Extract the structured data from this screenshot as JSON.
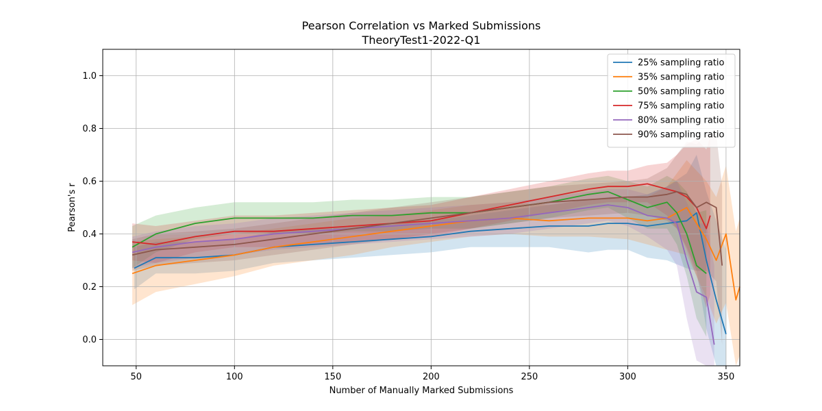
{
  "chart_data": {
    "type": "line",
    "title": "Pearson Correlation vs Marked Submissions",
    "subtitle": "TheoryTest1-2022-Q1",
    "xlabel": "Number of Manually Marked Submissions",
    "ylabel": "Pearson's r",
    "xlim": [
      33,
      357
    ],
    "ylim": [
      -0.1,
      1.1
    ],
    "xticks": [
      50,
      100,
      150,
      200,
      250,
      300,
      350
    ],
    "yticks": [
      0.0,
      0.2,
      0.4,
      0.6,
      0.8,
      1.0
    ],
    "xtick_labels": [
      "50",
      "100",
      "150",
      "200",
      "250",
      "300",
      "350"
    ],
    "ytick_labels": [
      "0.0",
      "0.2",
      "0.4",
      "0.6",
      "0.8",
      "1.0"
    ],
    "grid": true,
    "legend_position": "top-right",
    "series": [
      {
        "name": "25% sampling ratio",
        "color": "#1f77b4",
        "x": [
          49,
          60,
          80,
          100,
          120,
          140,
          160,
          180,
          200,
          220,
          240,
          260,
          280,
          290,
          300,
          310,
          320,
          330,
          335,
          340,
          345,
          350
        ],
        "y": [
          0.27,
          0.31,
          0.31,
          0.32,
          0.35,
          0.36,
          0.37,
          0.38,
          0.39,
          0.41,
          0.42,
          0.43,
          0.43,
          0.44,
          0.44,
          0.43,
          0.44,
          0.45,
          0.48,
          0.3,
          0.15,
          0.02
        ],
        "band": [
          0.08,
          0.06,
          0.06,
          0.06,
          0.06,
          0.06,
          0.06,
          0.06,
          0.06,
          0.06,
          0.07,
          0.08,
          0.1,
          0.1,
          0.1,
          0.12,
          0.14,
          0.18,
          0.22,
          0.26,
          0.3,
          0.32
        ]
      },
      {
        "name": "35% sampling ratio",
        "color": "#ff7f0e",
        "x": [
          48,
          60,
          80,
          100,
          120,
          140,
          160,
          180,
          200,
          220,
          240,
          260,
          280,
          300,
          310,
          320,
          330,
          340,
          345,
          350,
          355,
          357
        ],
        "y": [
          0.25,
          0.28,
          0.3,
          0.32,
          0.35,
          0.37,
          0.39,
          0.41,
          0.43,
          0.45,
          0.46,
          0.45,
          0.46,
          0.46,
          0.45,
          0.46,
          0.5,
          0.38,
          0.3,
          0.4,
          0.15,
          0.2
        ],
        "band": [
          0.12,
          0.1,
          0.09,
          0.08,
          0.07,
          0.07,
          0.07,
          0.06,
          0.06,
          0.06,
          0.06,
          0.06,
          0.07,
          0.08,
          0.09,
          0.12,
          0.18,
          0.22,
          0.24,
          0.26,
          0.26,
          0.26
        ]
      },
      {
        "name": "50% sampling ratio",
        "color": "#2ca02c",
        "x": [
          48,
          60,
          80,
          100,
          120,
          140,
          160,
          180,
          200,
          220,
          240,
          260,
          280,
          290,
          300,
          310,
          320,
          325,
          330,
          335,
          340
        ],
        "y": [
          0.35,
          0.4,
          0.44,
          0.46,
          0.46,
          0.46,
          0.47,
          0.47,
          0.48,
          0.48,
          0.5,
          0.52,
          0.55,
          0.56,
          0.53,
          0.5,
          0.52,
          0.48,
          0.4,
          0.28,
          0.25
        ],
        "band": [
          0.08,
          0.07,
          0.06,
          0.06,
          0.06,
          0.06,
          0.06,
          0.06,
          0.06,
          0.06,
          0.06,
          0.06,
          0.06,
          0.06,
          0.07,
          0.08,
          0.1,
          0.12,
          0.16,
          0.2,
          0.24
        ]
      },
      {
        "name": "75% sampling ratio",
        "color": "#d62728",
        "x": [
          48,
          60,
          80,
          100,
          120,
          140,
          160,
          180,
          200,
          220,
          240,
          260,
          280,
          290,
          300,
          310,
          320,
          325,
          330,
          335,
          340,
          342
        ],
        "y": [
          0.37,
          0.36,
          0.39,
          0.41,
          0.41,
          0.42,
          0.43,
          0.44,
          0.45,
          0.48,
          0.51,
          0.54,
          0.57,
          0.58,
          0.58,
          0.59,
          0.57,
          0.56,
          0.54,
          0.5,
          0.42,
          0.47
        ],
        "band": [
          0.07,
          0.07,
          0.06,
          0.06,
          0.06,
          0.06,
          0.06,
          0.06,
          0.06,
          0.06,
          0.06,
          0.06,
          0.06,
          0.06,
          0.06,
          0.07,
          0.1,
          0.14,
          0.2,
          0.26,
          0.3,
          0.3
        ]
      },
      {
        "name": "80% sampling ratio",
        "color": "#9467bd",
        "x": [
          48,
          60,
          80,
          100,
          120,
          140,
          160,
          180,
          200,
          220,
          240,
          260,
          280,
          290,
          300,
          310,
          320,
          325,
          330,
          335,
          340,
          344
        ],
        "y": [
          0.33,
          0.35,
          0.37,
          0.38,
          0.4,
          0.41,
          0.42,
          0.43,
          0.44,
          0.45,
          0.46,
          0.48,
          0.5,
          0.51,
          0.5,
          0.47,
          0.46,
          0.44,
          0.3,
          0.18,
          0.16,
          -0.02
        ],
        "band": [
          0.06,
          0.06,
          0.06,
          0.06,
          0.06,
          0.06,
          0.06,
          0.06,
          0.06,
          0.06,
          0.06,
          0.06,
          0.06,
          0.06,
          0.07,
          0.08,
          0.12,
          0.16,
          0.22,
          0.26,
          0.28,
          0.3
        ]
      },
      {
        "name": "90% sampling ratio",
        "color": "#8c564b",
        "x": [
          48,
          60,
          80,
          100,
          120,
          140,
          160,
          180,
          200,
          220,
          240,
          260,
          280,
          300,
          310,
          320,
          325,
          330,
          335,
          340,
          345,
          348
        ],
        "y": [
          0.32,
          0.34,
          0.35,
          0.36,
          0.38,
          0.4,
          0.42,
          0.44,
          0.46,
          0.48,
          0.5,
          0.52,
          0.53,
          0.54,
          0.54,
          0.55,
          0.56,
          0.55,
          0.5,
          0.52,
          0.5,
          0.28
        ],
        "band": [
          0.06,
          0.06,
          0.06,
          0.06,
          0.06,
          0.06,
          0.06,
          0.06,
          0.06,
          0.06,
          0.06,
          0.06,
          0.06,
          0.06,
          0.07,
          0.1,
          0.14,
          0.2,
          0.24,
          0.26,
          0.28,
          0.3
        ]
      }
    ]
  }
}
